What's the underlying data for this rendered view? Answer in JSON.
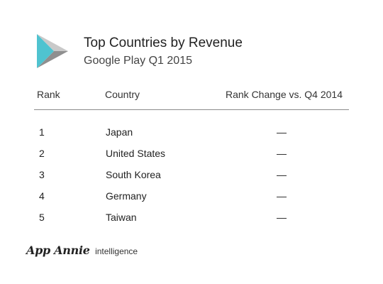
{
  "header": {
    "logo_icon": "google-play-icon",
    "title": "Top Countries by Revenue",
    "subtitle": "Google Play Q1 2015"
  },
  "table": {
    "columns": {
      "rank": "Rank",
      "country": "Country",
      "change": "Rank Change vs. Q4 2014"
    },
    "rows": [
      {
        "rank": "1",
        "country": "Japan",
        "change": "—"
      },
      {
        "rank": "2",
        "country": "United States",
        "change": "—"
      },
      {
        "rank": "3",
        "country": "South Korea",
        "change": "—"
      },
      {
        "rank": "4",
        "country": "Germany",
        "change": "—"
      },
      {
        "rank": "5",
        "country": "Taiwan",
        "change": "—"
      }
    ]
  },
  "footer": {
    "brand": "App Annie",
    "tagline": "intelligence"
  },
  "colors": {
    "play_teal": "#4fc3d0",
    "play_gray_light": "#c9c9c9",
    "play_gray_dark": "#8f8f8f"
  }
}
